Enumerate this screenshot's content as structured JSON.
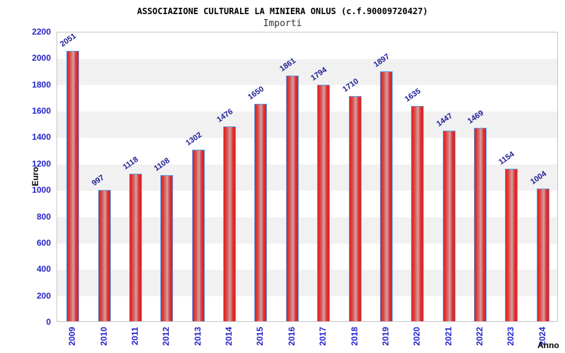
{
  "header": {
    "title": "ASSOCIAZIONE CULTURALE LA MINIERA ONLUS (c.f.90009720427)",
    "subtitle": "Importi"
  },
  "chart_data": {
    "type": "bar",
    "title": "ASSOCIAZIONE CULTURALE LA MINIERA ONLUS (c.f.90009720427)",
    "subtitle": "Importi",
    "xlabel": "Anno",
    "ylabel": "Euro",
    "categories": [
      "2009",
      "2010",
      "2011",
      "2012",
      "2013",
      "2014",
      "2015",
      "2016",
      "2017",
      "2018",
      "2019",
      "2020",
      "2021",
      "2022",
      "2023",
      "2024"
    ],
    "values": [
      2051,
      997,
      1118,
      1108,
      1302,
      1476,
      1650,
      1861,
      1794,
      1710,
      1897,
      1635,
      1447,
      1469,
      1154,
      1004
    ],
    "ylim": [
      0,
      2200
    ],
    "ytick_step": 200,
    "yticks": [
      0,
      200,
      400,
      600,
      800,
      1000,
      1200,
      1400,
      1600,
      1800,
      2000,
      2200
    ],
    "grid": "alternating horizontal bands every 200 units, white/gray",
    "legend": "none",
    "value_labels": "rotated above bars",
    "colors": {
      "bar_fill": "#e41a1a",
      "bar_highlight": "#d2a2a2",
      "bar_border": "#5aa1e8",
      "axis_tick_label": "#2424cc",
      "value_label": "#1d1d96",
      "band_gray": "#f1f1f1",
      "plot_border": "#c6c6c6",
      "title_color": "#000000",
      "subtitle_color": "#333333"
    }
  }
}
